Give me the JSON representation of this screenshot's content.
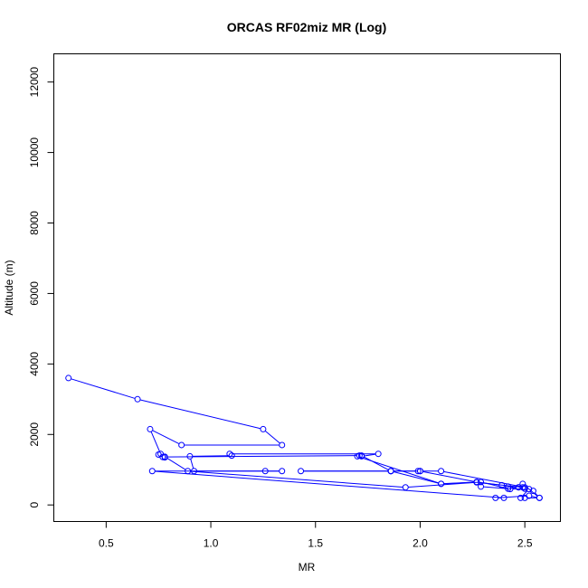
{
  "chart_data": {
    "type": "line",
    "title": "ORCAS RF02miz MR (Log)",
    "xlabel": "MR",
    "ylabel": "Altitude (m)",
    "xlim": [
      0.25,
      2.67
    ],
    "ylim": [
      -470,
      12800
    ],
    "x_ticks": [
      0.5,
      1.0,
      1.5,
      2.0,
      2.5
    ],
    "x_tick_labels": [
      "0.5",
      "1.0",
      "1.5",
      "2.0",
      "2.5"
    ],
    "y_ticks": [
      0,
      2000,
      4000,
      6000,
      8000,
      10000,
      12000
    ],
    "y_tick_labels": [
      "0",
      "2000",
      "4000",
      "6000",
      "8000",
      "10000",
      "12000"
    ],
    "grid": false,
    "line_color": "#0000ff",
    "marker": "open-circle",
    "series": [
      {
        "x": [
          0.32,
          0.65,
          1.25,
          1.34,
          0.86,
          0.71,
          0.76,
          0.75,
          0.78,
          0.77,
          1.71,
          1.72,
          1.8,
          1.09,
          1.1,
          0.9,
          0.92,
          1.34,
          1.26,
          0.72,
          2.4,
          2.36,
          2.52,
          2.57,
          2.5,
          2.48,
          2.52,
          2.54,
          2.57,
          2.49,
          2.47,
          2.42,
          2.29,
          2.27,
          2.1,
          1.86,
          1.43,
          1.86,
          2.0,
          2.27,
          2.39,
          2.42,
          2.47,
          2.5,
          2.1,
          2.0,
          1.99,
          1.86,
          1.72,
          1.7,
          2.1,
          2.27,
          2.49,
          2.5,
          2.43,
          2.29,
          1.93,
          0.89,
          0.78
        ],
        "y": [
          3600,
          3000,
          2150,
          1700,
          1700,
          2150,
          1450,
          1430,
          1350,
          1360,
          1400,
          1380,
          1450,
          1450,
          1400,
          1380,
          960,
          960,
          960,
          960,
          200,
          200,
          260,
          200,
          200,
          200,
          450,
          400,
          200,
          600,
          500,
          460,
          520,
          650,
          600,
          960,
          960,
          960,
          960,
          650,
          560,
          520,
          500,
          500,
          960,
          960,
          960,
          960,
          1400,
          1380,
          600,
          640,
          500,
          460,
          450,
          650,
          500,
          960,
          1370
        ]
      }
    ]
  }
}
